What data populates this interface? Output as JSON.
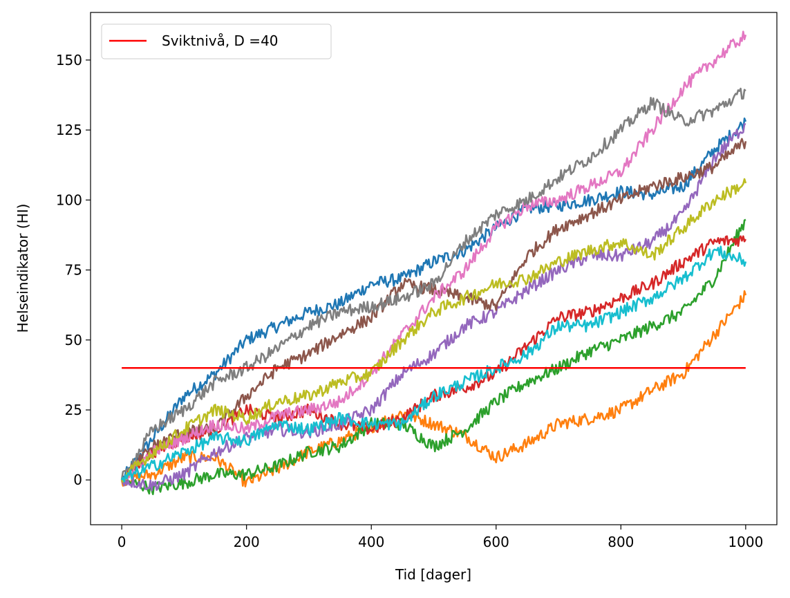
{
  "chart_data": {
    "type": "line",
    "title": "",
    "xlabel": "Tid [dager]",
    "ylabel": "Helseindikator (HI)",
    "xlim": [
      -50,
      1050
    ],
    "ylim": [
      -16,
      167
    ],
    "xticks": [
      0,
      200,
      400,
      600,
      800,
      1000
    ],
    "yticks": [
      0,
      25,
      50,
      75,
      100,
      125,
      150
    ],
    "grid": false,
    "legend_position": "top-left",
    "threshold": {
      "label": "Sviktnivå, D =40",
      "value": 40,
      "x_range": [
        0,
        1000
      ],
      "color": "#ff0000"
    },
    "series": [
      {
        "color": "#1f77b4",
        "x": [
          0,
          50,
          100,
          150,
          200,
          250,
          300,
          350,
          400,
          450,
          500,
          550,
          600,
          650,
          700,
          750,
          800,
          850,
          900,
          950,
          1000
        ],
        "y": [
          0,
          15,
          30,
          38,
          50,
          55,
          60,
          63,
          70,
          72,
          78,
          82,
          90,
          97,
          98,
          100,
          103,
          102,
          105,
          118,
          128
        ]
      },
      {
        "color": "#ff7f0e",
        "x": [
          0,
          50,
          100,
          150,
          200,
          250,
          300,
          350,
          400,
          450,
          500,
          550,
          600,
          650,
          700,
          750,
          800,
          850,
          900,
          950,
          1000
        ],
        "y": [
          0,
          2,
          8,
          8,
          -1,
          4,
          10,
          14,
          19,
          24,
          20,
          16,
          8,
          13,
          20,
          22,
          25,
          32,
          38,
          52,
          66
        ]
      },
      {
        "color": "#2ca02c",
        "x": [
          0,
          50,
          100,
          150,
          200,
          250,
          300,
          350,
          400,
          450,
          500,
          550,
          600,
          650,
          700,
          750,
          800,
          850,
          900,
          950,
          1000
        ],
        "y": [
          0,
          -3,
          -1,
          2,
          2,
          5,
          10,
          12,
          20,
          20,
          12,
          18,
          28,
          35,
          40,
          46,
          50,
          55,
          60,
          72,
          93
        ]
      },
      {
        "color": "#d62728",
        "x": [
          0,
          50,
          100,
          150,
          200,
          250,
          300,
          350,
          400,
          450,
          500,
          550,
          600,
          650,
          700,
          750,
          800,
          850,
          900,
          950,
          1000
        ],
        "y": [
          0,
          10,
          15,
          18,
          25,
          22,
          25,
          20,
          18,
          22,
          30,
          33,
          38,
          48,
          58,
          60,
          65,
          70,
          78,
          85,
          86
        ]
      },
      {
        "color": "#9467bd",
        "x": [
          0,
          50,
          100,
          150,
          200,
          250,
          300,
          350,
          400,
          450,
          500,
          550,
          600,
          650,
          700,
          750,
          800,
          850,
          900,
          950,
          1000
        ],
        "y": [
          0,
          -2,
          2,
          10,
          15,
          18,
          17,
          20,
          25,
          38,
          45,
          55,
          60,
          68,
          75,
          80,
          80,
          85,
          95,
          115,
          127
        ]
      },
      {
        "color": "#8c564b",
        "x": [
          0,
          50,
          100,
          150,
          200,
          250,
          300,
          350,
          400,
          450,
          500,
          550,
          600,
          650,
          700,
          750,
          800,
          850,
          900,
          950,
          1000
        ],
        "y": [
          0,
          12,
          17,
          18,
          30,
          40,
          45,
          52,
          58,
          70,
          68,
          65,
          62,
          80,
          90,
          95,
          100,
          105,
          108,
          112,
          121
        ]
      },
      {
        "color": "#e377c2",
        "x": [
          0,
          50,
          100,
          150,
          200,
          250,
          300,
          350,
          400,
          450,
          500,
          550,
          600,
          650,
          700,
          750,
          800,
          850,
          900,
          950,
          1000
        ],
        "y": [
          0,
          10,
          15,
          20,
          18,
          23,
          25,
          28,
          38,
          52,
          65,
          75,
          90,
          98,
          100,
          105,
          110,
          125,
          140,
          150,
          159
        ]
      },
      {
        "color": "#7f7f7f",
        "x": [
          0,
          50,
          100,
          150,
          200,
          250,
          300,
          350,
          400,
          450,
          500,
          550,
          600,
          650,
          700,
          750,
          800,
          850,
          900,
          950,
          1000
        ],
        "y": [
          0,
          18,
          25,
          35,
          40,
          47,
          55,
          60,
          62,
          65,
          70,
          85,
          95,
          100,
          108,
          115,
          125,
          135,
          128,
          132,
          139
        ]
      },
      {
        "color": "#bcbd22",
        "x": [
          0,
          50,
          100,
          150,
          200,
          250,
          300,
          350,
          400,
          450,
          500,
          550,
          600,
          650,
          700,
          750,
          800,
          850,
          900,
          950,
          1000
        ],
        "y": [
          0,
          10,
          18,
          25,
          22,
          28,
          30,
          35,
          38,
          50,
          60,
          65,
          70,
          72,
          78,
          82,
          85,
          80,
          90,
          100,
          106
        ]
      },
      {
        "color": "#17becf",
        "x": [
          0,
          50,
          100,
          150,
          200,
          250,
          300,
          350,
          400,
          450,
          500,
          550,
          600,
          650,
          700,
          750,
          800,
          850,
          900,
          950,
          1000
        ],
        "y": [
          0,
          5,
          10,
          15,
          14,
          20,
          18,
          22,
          20,
          20,
          30,
          35,
          40,
          45,
          55,
          55,
          60,
          65,
          72,
          82,
          78
        ]
      }
    ]
  }
}
